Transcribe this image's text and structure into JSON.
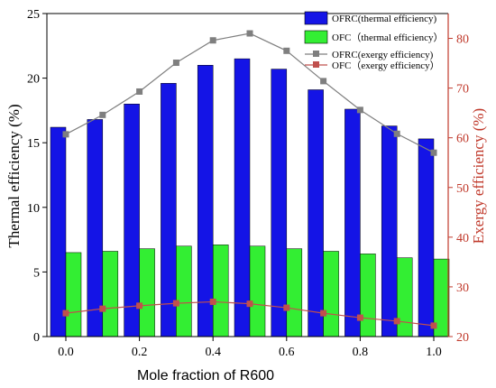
{
  "chart_data": {
    "type": "bar",
    "x_values": [
      0.0,
      0.1,
      0.2,
      0.3,
      0.4,
      0.5,
      0.6,
      0.7,
      0.8,
      0.9,
      1.0
    ],
    "x_tick_labels": [
      "0.0",
      "0.2",
      "0.4",
      "0.6",
      "0.8",
      "1.0"
    ],
    "x_tick_values": [
      0.0,
      0.2,
      0.4,
      0.6,
      0.8,
      1.0
    ],
    "xlabel": "Mole fraction of R600",
    "ylabel_left": "Thermal efficiency (%)",
    "ylabel_right": "Exergy efficiency (%)",
    "ylim_left": [
      0,
      25
    ],
    "ylim_right": [
      20,
      85
    ],
    "left_ticks": [
      0,
      5,
      10,
      15,
      20,
      25
    ],
    "right_ticks": [
      20,
      30,
      40,
      50,
      60,
      70,
      80
    ],
    "bar_series": [
      {
        "name": "OFRC(thermal efficiency)",
        "color": "#1414e6",
        "values": [
          16.2,
          16.8,
          18.0,
          19.6,
          21.0,
          21.5,
          20.7,
          19.1,
          17.6,
          16.3,
          15.3
        ]
      },
      {
        "name": "OFC（thermal efficiency）",
        "color": "#33ee33",
        "values": [
          6.5,
          6.6,
          6.8,
          7.0,
          7.1,
          7.0,
          6.8,
          6.6,
          6.4,
          6.1,
          6.0
        ]
      }
    ],
    "line_series": [
      {
        "name": "OFRC(exergy efficiency)",
        "color": "#7f7f7f",
        "values": [
          60.7,
          64.6,
          69.3,
          75.1,
          79.6,
          81.0,
          77.5,
          71.4,
          65.6,
          60.8,
          57.0
        ]
      },
      {
        "name": "OFC（exergy efficiency）",
        "color": "#c0504d",
        "values": [
          24.7,
          25.6,
          26.2,
          26.7,
          27.0,
          26.6,
          25.8,
          24.7,
          23.8,
          23.1,
          22.2
        ]
      }
    ],
    "legend_position": "top-right"
  }
}
